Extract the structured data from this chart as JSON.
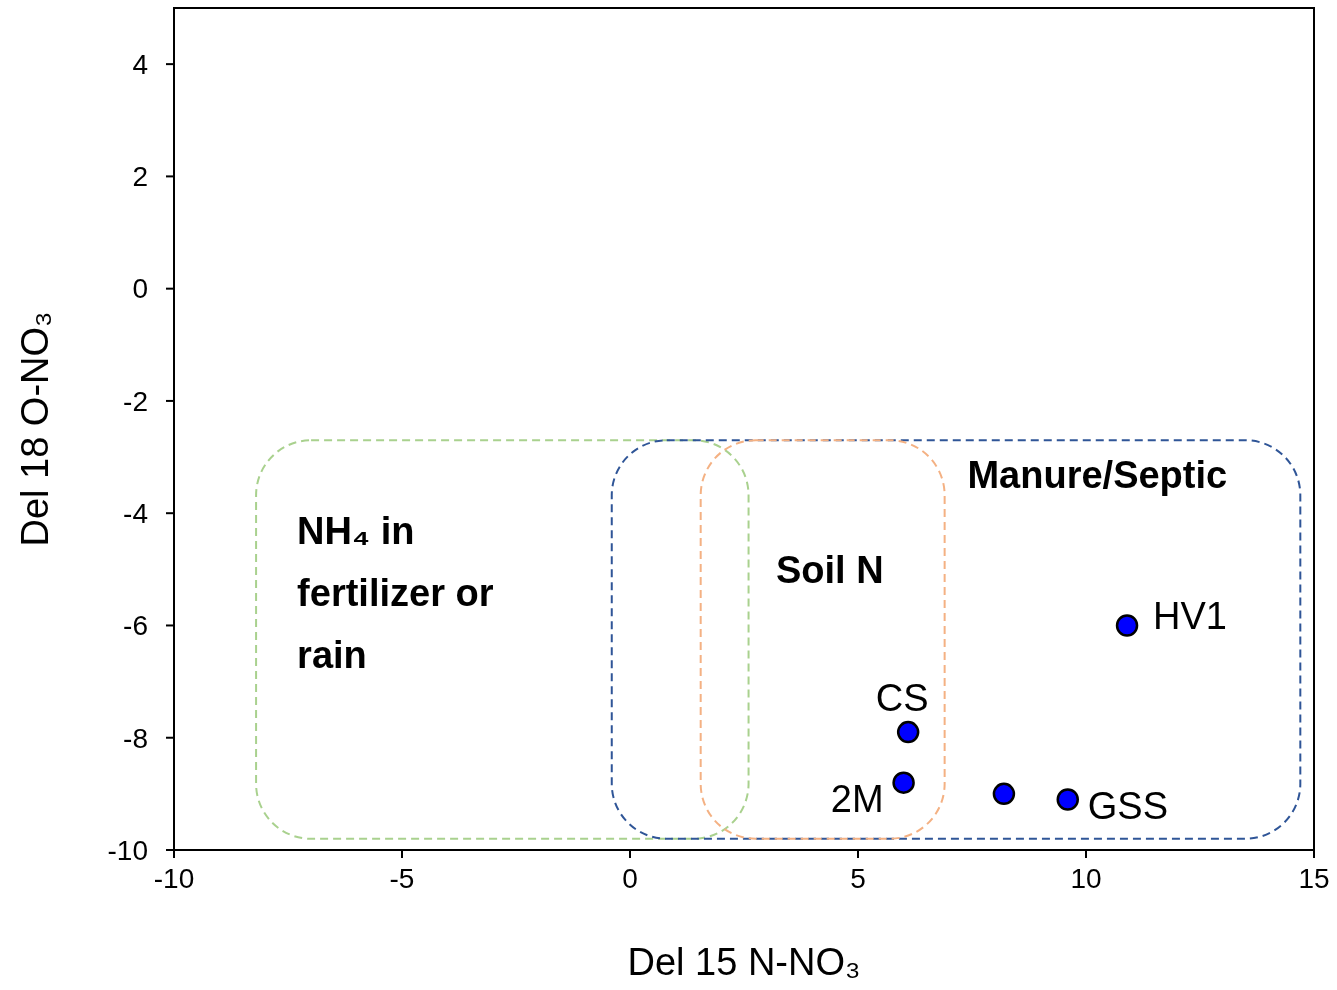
{
  "chart_data": {
    "type": "scatter",
    "xlabel": "Del 15 N-NO₃",
    "ylabel": "Del 18 O-NO₃",
    "x": [
      10.9,
      6.1,
      6.0,
      8.2,
      9.6
    ],
    "values": [
      -6.0,
      -7.9,
      -8.8,
      -9.0,
      -9.1
    ],
    "color": "#0000ff",
    "marker": "circle",
    "xlim": [
      -10,
      15
    ],
    "xticks": [
      -10,
      -5,
      0,
      5,
      10,
      15
    ],
    "ylim": [
      -10,
      5
    ],
    "yticks": [
      -10,
      -8,
      -6,
      -4,
      -2,
      0,
      2,
      4
    ],
    "grid": false,
    "annotations": [
      {
        "text": "HV1",
        "x": 10.9,
        "y": -6.0
      },
      {
        "text": "CS",
        "x": 6.1,
        "y": -7.9
      },
      {
        "text": "2M",
        "x": 6.0,
        "y": -8.8
      },
      {
        "text": "GSS",
        "x": 9.6,
        "y": -9.1
      },
      "NH₄ in fertilizer or rain",
      "Soil N",
      "Manure/Septic"
    ]
  }
}
